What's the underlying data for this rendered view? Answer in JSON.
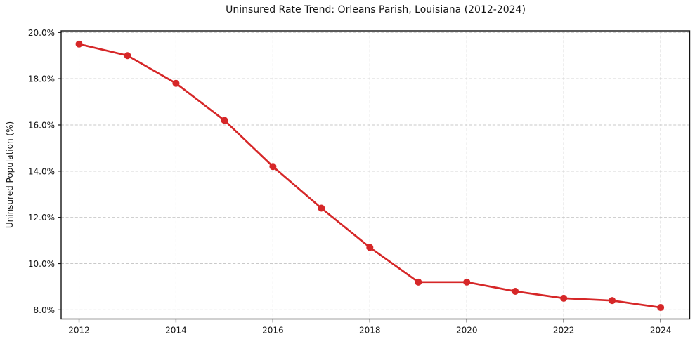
{
  "chart_data": {
    "type": "line",
    "title": "Uninsured Rate Trend: Orleans Parish, Louisiana (2012-2024)",
    "ylabel": "Uninsured Population (%)",
    "xlabel": "",
    "x": [
      2012,
      2013,
      2014,
      2015,
      2016,
      2017,
      2018,
      2019,
      2020,
      2021,
      2022,
      2023,
      2024
    ],
    "values": [
      19.5,
      19.0,
      17.8,
      16.2,
      14.2,
      12.4,
      10.7,
      9.2,
      9.2,
      8.8,
      8.5,
      8.4,
      8.1
    ],
    "xticks": {
      "values": [
        2012,
        2014,
        2016,
        2018,
        2020,
        2022,
        2024
      ],
      "labels": [
        "2012",
        "2014",
        "2016",
        "2018",
        "2020",
        "2022",
        "2024"
      ]
    },
    "yticks": {
      "values": [
        8,
        10,
        12,
        14,
        16,
        18,
        20
      ],
      "labels": [
        "8.0%",
        "10.0%",
        "12.0%",
        "14.0%",
        "16.0%",
        "18.0%",
        "20.0%"
      ]
    },
    "xlim": [
      2011.63,
      2024.6
    ],
    "ylim": [
      7.6,
      20.07
    ],
    "grid": true,
    "legend_position": "none",
    "marker": "circle",
    "colors": {
      "line": "#d62728",
      "marker": "#d62728",
      "grid": "#c9c9c9",
      "spine": "#141414",
      "text": "#141414",
      "background": "#ffffff"
    }
  }
}
